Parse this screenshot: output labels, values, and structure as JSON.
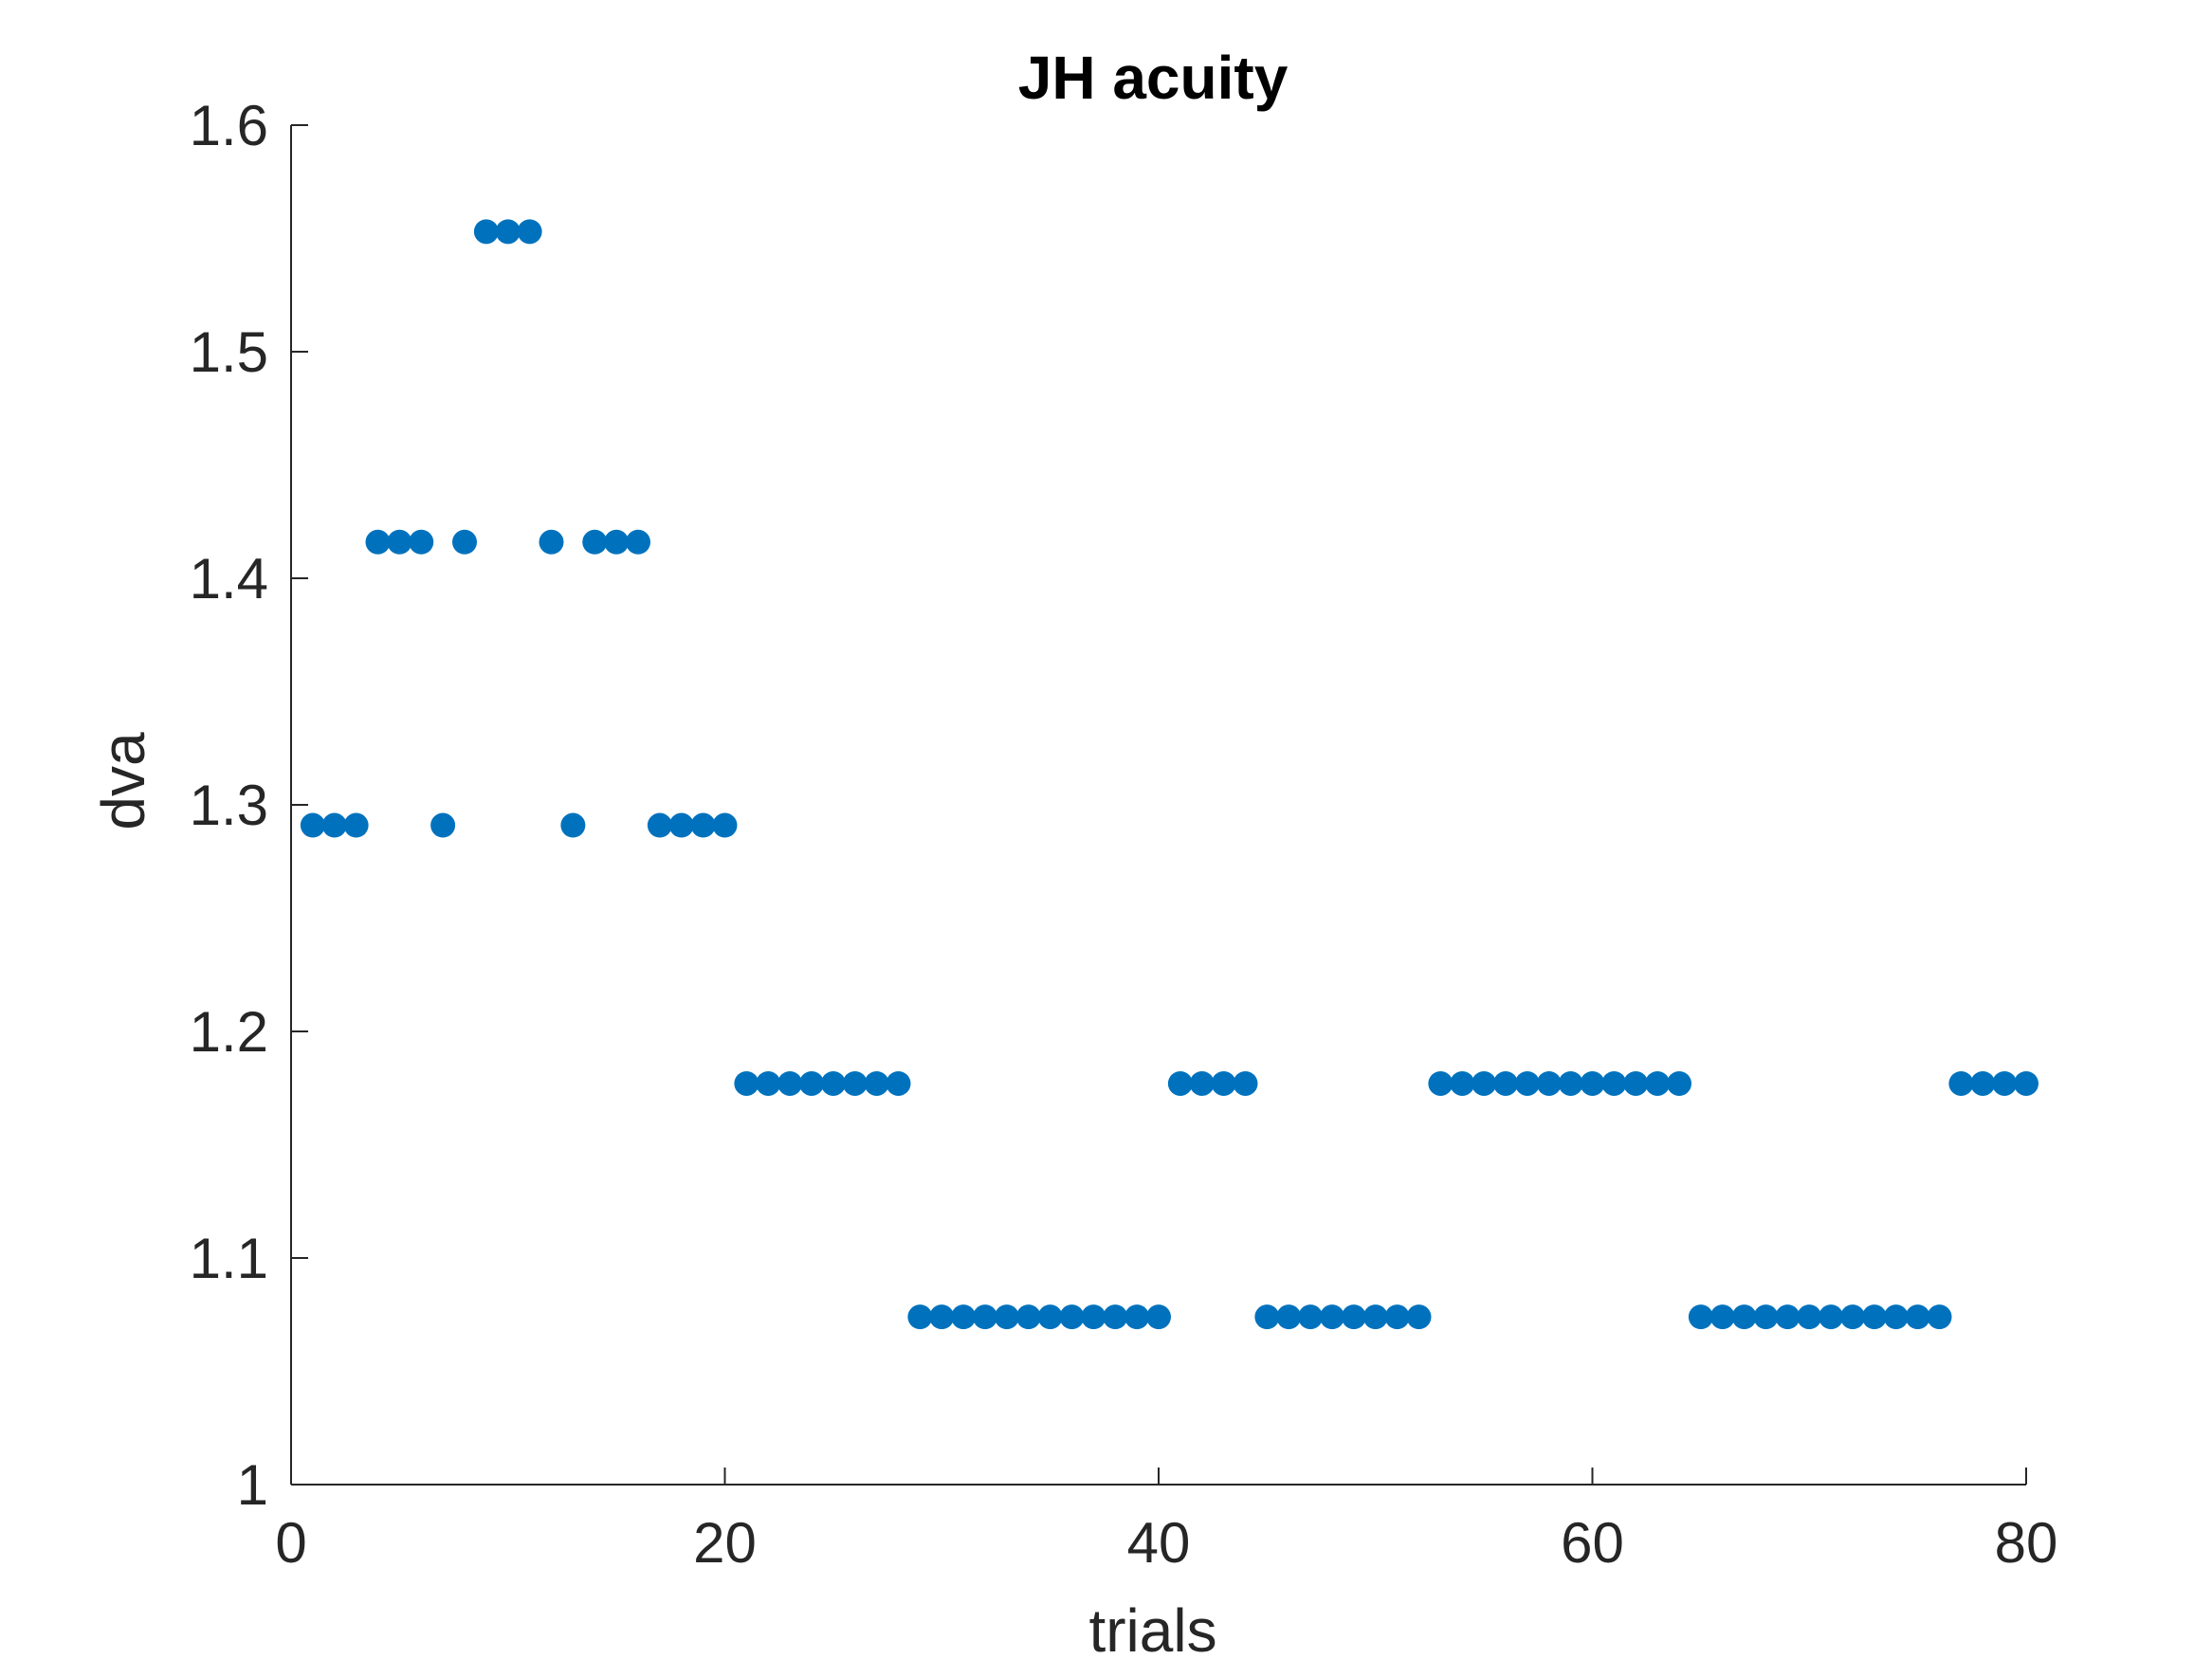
{
  "colors": {
    "marker": "#0072bd",
    "axis": "#262626",
    "title": "#000000",
    "background": "#ffffff"
  },
  "chart_data": {
    "type": "scatter",
    "title": "JH acuity",
    "xlabel": "trials",
    "ylabel": "dva",
    "xlim": [
      0,
      80
    ],
    "ylim": [
      1,
      1.6
    ],
    "xticks": [
      0,
      20,
      40,
      60,
      80
    ],
    "xtick_labels": [
      "0",
      "20",
      "40",
      "60",
      "80"
    ],
    "yticks": [
      1,
      1.1,
      1.2,
      1.3,
      1.4,
      1.5,
      1.6
    ],
    "ytick_labels": [
      "1",
      "1.1",
      "1.2",
      "1.3",
      "1.4",
      "1.5",
      "1.6"
    ],
    "grid": false,
    "legend": "none",
    "x": [
      1,
      2,
      3,
      4,
      5,
      6,
      7,
      8,
      9,
      10,
      11,
      12,
      13,
      14,
      15,
      16,
      17,
      18,
      19,
      20,
      21,
      22,
      23,
      24,
      25,
      26,
      27,
      28,
      29,
      30,
      31,
      32,
      33,
      34,
      35,
      36,
      37,
      38,
      39,
      40,
      41,
      42,
      43,
      44,
      45,
      46,
      47,
      48,
      49,
      50,
      51,
      52,
      53,
      54,
      55,
      56,
      57,
      58,
      59,
      60,
      61,
      62,
      63,
      64,
      65,
      66,
      67,
      68,
      69,
      70,
      71,
      72,
      73,
      74,
      75,
      76,
      77,
      78,
      79,
      80
    ],
    "y": [
      1.291,
      1.291,
      1.291,
      1.416,
      1.416,
      1.416,
      1.291,
      1.416,
      1.553,
      1.553,
      1.553,
      1.416,
      1.291,
      1.416,
      1.416,
      1.416,
      1.291,
      1.291,
      1.291,
      1.291,
      1.177,
      1.177,
      1.177,
      1.177,
      1.177,
      1.177,
      1.177,
      1.177,
      1.074,
      1.074,
      1.074,
      1.074,
      1.074,
      1.074,
      1.074,
      1.074,
      1.074,
      1.074,
      1.074,
      1.074,
      1.177,
      1.177,
      1.177,
      1.177,
      1.074,
      1.074,
      1.074,
      1.074,
      1.074,
      1.074,
      1.074,
      1.074,
      1.177,
      1.177,
      1.177,
      1.177,
      1.177,
      1.177,
      1.177,
      1.177,
      1.177,
      1.177,
      1.177,
      1.177,
      1.074,
      1.074,
      1.074,
      1.074,
      1.074,
      1.074,
      1.074,
      1.074,
      1.074,
      1.074,
      1.074,
      1.074,
      1.177,
      1.177,
      1.177,
      1.177
    ]
  }
}
